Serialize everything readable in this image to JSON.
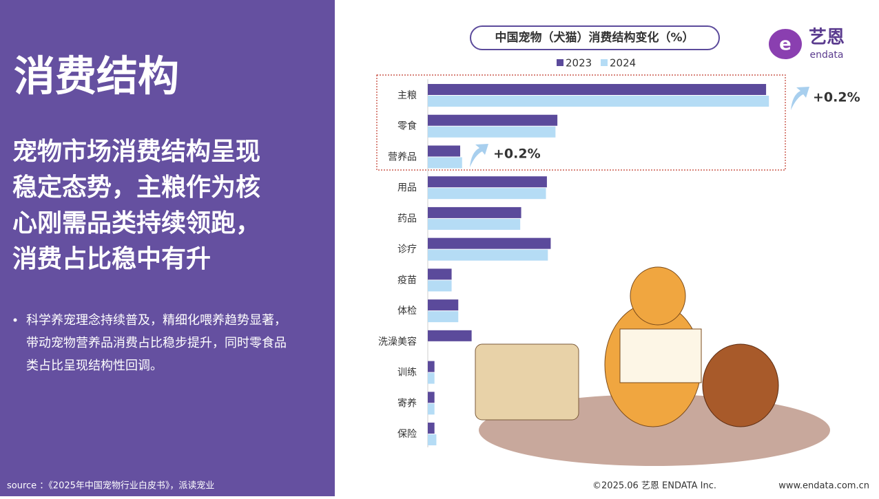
{
  "panel": {
    "heading": "消费结构",
    "subtitle_lines": [
      "宠物市场消费结构呈现",
      "稳定态势，主粮作为核",
      "心刚需品类持续领跑，",
      "消费占比稳中有升"
    ],
    "bullet_lines": [
      "科学养宠理念持续普及，精细化喂养趋势显著，",
      "带动宠物营养品消费占比稳步提升，同时零食品",
      "类占比呈现结构性回调。"
    ],
    "source": "source ：《2025年中国宠物行业白皮书》，派读宠业"
  },
  "logo": {
    "name": "艺恩",
    "sub": "endata"
  },
  "footer": {
    "copyright": "©2025.06  艺恩 ENDATA Inc.",
    "url": "www.endata.com.cn"
  },
  "chart_data": {
    "type": "bar",
    "orientation": "horizontal",
    "title": "中国宠物（犬猫）消费结构变化（%）",
    "categories": [
      "主粮",
      "零食",
      "营养品",
      "用品",
      "药品",
      "诊疗",
      "疫苗",
      "体检",
      "洗澡美容",
      "训练",
      "寄养",
      "保险"
    ],
    "series": [
      {
        "name": "2023",
        "color": "#5b4a9b",
        "values": [
          35.5,
          13.6,
          3.4,
          12.5,
          9.8,
          12.9,
          2.5,
          3.2,
          4.6,
          0.7,
          0.7,
          0.7
        ]
      },
      {
        "name": "2024",
        "color": "#b5dcf5",
        "values": [
          35.8,
          13.4,
          3.6,
          12.4,
          9.7,
          12.6,
          2.5,
          3.2,
          null,
          0.7,
          0.7,
          0.9
        ]
      }
    ],
    "xlim": [
      0,
      36
    ],
    "annotations": [
      "+0.2%",
      "+0.2%"
    ],
    "legend": "top"
  }
}
